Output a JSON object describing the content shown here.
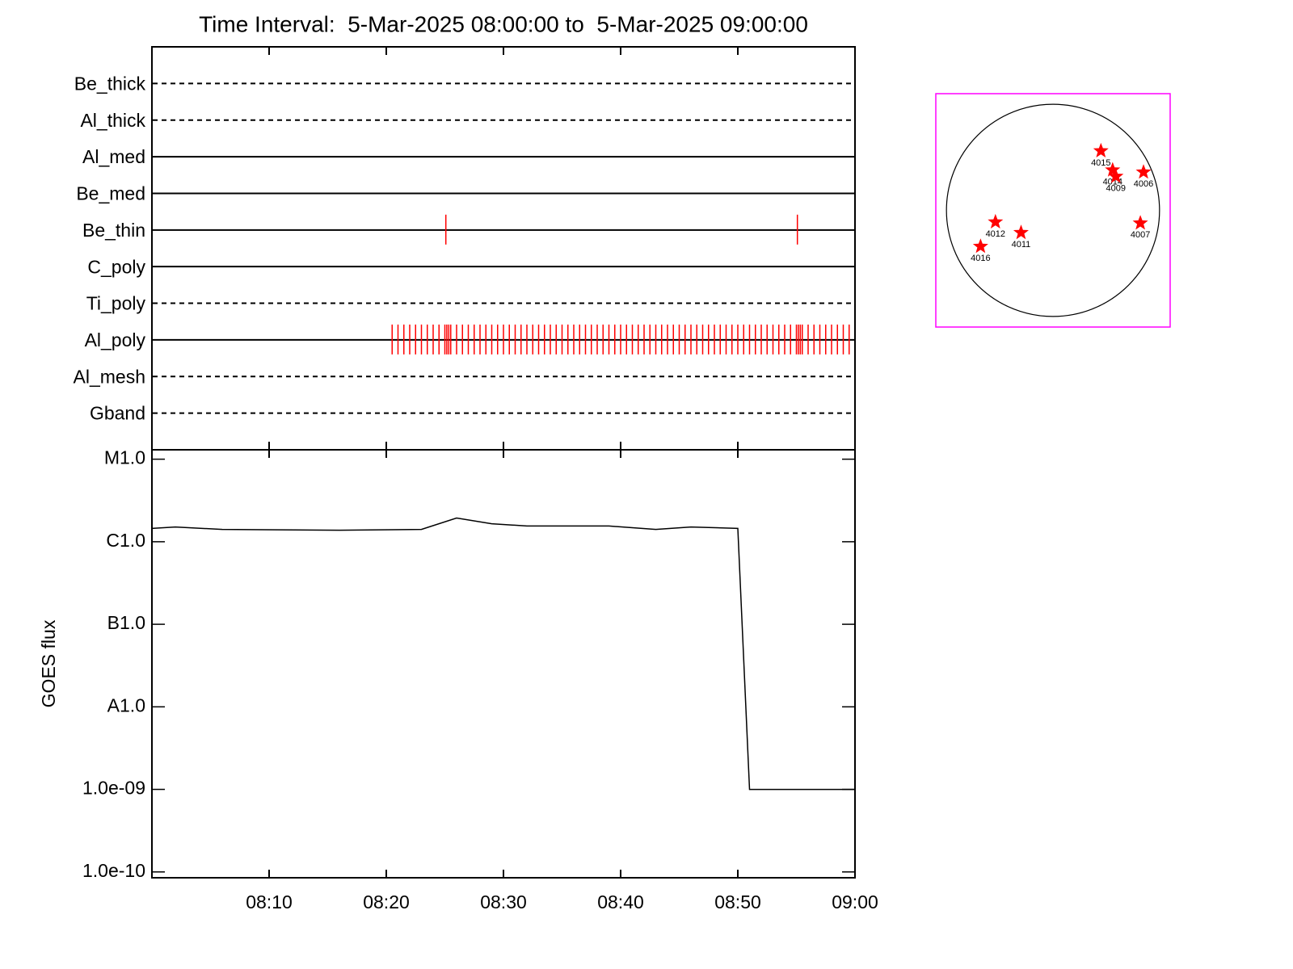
{
  "chart_data": [
    {
      "type": "events",
      "title": "Time Interval:  5-Mar-2025 08:00:00 to  5-Mar-2025 09:00:00",
      "xlim": [
        "08:00",
        "09:00"
      ],
      "xticks": [
        "08:10",
        "08:20",
        "08:30",
        "08:40",
        "08:50",
        "09:00"
      ],
      "color": "#ff0000",
      "rows": [
        {
          "name": "Be_thick",
          "style": "dashed"
        },
        {
          "name": "Al_thick",
          "style": "dashed"
        },
        {
          "name": "Al_med",
          "style": "solid"
        },
        {
          "name": "Be_med",
          "style": "solid"
        },
        {
          "name": "Be_thin",
          "style": "solid",
          "events": [
            "08:25:05",
            "08:55:05"
          ]
        },
        {
          "name": "C_poly",
          "style": "solid"
        },
        {
          "name": "Ti_poly",
          "style": "dashed"
        },
        {
          "name": "Al_poly",
          "style": "solid",
          "events": [
            "08:20:30",
            "08:21:00",
            "08:21:30",
            "08:22:00",
            "08:22:30",
            "08:23:00",
            "08:23:30",
            "08:24:00",
            "08:24:30",
            "08:25:00",
            "08:25:10",
            "08:25:20",
            "08:25:30",
            "08:26:00",
            "08:26:30",
            "08:27:00",
            "08:27:30",
            "08:28:00",
            "08:28:30",
            "08:29:00",
            "08:29:30",
            "08:30:00",
            "08:30:30",
            "08:31:00",
            "08:31:30",
            "08:32:00",
            "08:32:30",
            "08:33:00",
            "08:33:30",
            "08:34:00",
            "08:34:30",
            "08:35:00",
            "08:35:30",
            "08:36:00",
            "08:36:30",
            "08:37:00",
            "08:37:30",
            "08:38:00",
            "08:38:30",
            "08:39:00",
            "08:39:30",
            "08:40:00",
            "08:40:30",
            "08:41:00",
            "08:41:30",
            "08:42:00",
            "08:42:30",
            "08:43:00",
            "08:43:30",
            "08:44:00",
            "08:44:30",
            "08:45:00",
            "08:45:30",
            "08:46:00",
            "08:46:30",
            "08:47:00",
            "08:47:30",
            "08:48:00",
            "08:48:30",
            "08:49:00",
            "08:49:30",
            "08:50:00",
            "08:50:30",
            "08:51:00",
            "08:51:30",
            "08:52:00",
            "08:52:30",
            "08:53:00",
            "08:53:30",
            "08:54:00",
            "08:54:30",
            "08:55:00",
            "08:55:10",
            "08:55:20",
            "08:55:30",
            "08:56:00",
            "08:56:30",
            "08:57:00",
            "08:57:30",
            "08:58:00",
            "08:58:30",
            "08:59:00",
            "08:59:30"
          ]
        },
        {
          "name": "Al_mesh",
          "style": "dashed"
        },
        {
          "name": "Gband",
          "style": "dashed"
        }
      ]
    },
    {
      "type": "line",
      "ylabel": "GOES flux",
      "log_scale": true,
      "color": "#000000",
      "x": [
        "08:00",
        "08:02",
        "08:06",
        "08:16",
        "08:23",
        "08:26",
        "08:29",
        "08:32",
        "08:39",
        "08:43",
        "08:46",
        "08:50",
        "08:51",
        "09:00"
      ],
      "values": [
        1.45e-06,
        1.51e-06,
        1.41e-06,
        1.38e-06,
        1.41e-06,
        1.94e-06,
        1.65e-06,
        1.55e-06,
        1.55e-06,
        1.41e-06,
        1.51e-06,
        1.45e-06,
        1e-09,
        1e-09
      ],
      "xlim": [
        "08:00",
        "09:00"
      ],
      "xticks": [
        "08:10",
        "08:20",
        "08:30",
        "08:40",
        "08:50",
        "09:00"
      ],
      "ylim": [
        8.5e-11,
        1.3e-05
      ],
      "yticks": [
        {
          "value": 1e-10,
          "label": "1.0e-10"
        },
        {
          "value": 1e-09,
          "label": "1.0e-09"
        },
        {
          "value": 1e-08,
          "label": "A1.0"
        },
        {
          "value": 1e-07,
          "label": "B1.0"
        },
        {
          "value": 1e-06,
          "label": "C1.0"
        },
        {
          "value": 1e-05,
          "label": "M1.0"
        }
      ]
    },
    {
      "type": "scatter",
      "color": "#ff0000",
      "border_color": "#ff00ff",
      "xlim": [
        -1.1,
        1.1
      ],
      "ylim": [
        -1.1,
        1.1
      ],
      "labels": [
        "4015",
        "4014",
        "4009",
        "4006",
        "4012",
        "4011",
        "4016",
        "4007"
      ],
      "x": [
        0.45,
        0.56,
        0.59,
        0.85,
        -0.54,
        -0.3,
        -0.68,
        0.82
      ],
      "y": [
        0.56,
        0.38,
        0.32,
        0.36,
        -0.11,
        -0.21,
        -0.34,
        -0.12
      ]
    }
  ]
}
